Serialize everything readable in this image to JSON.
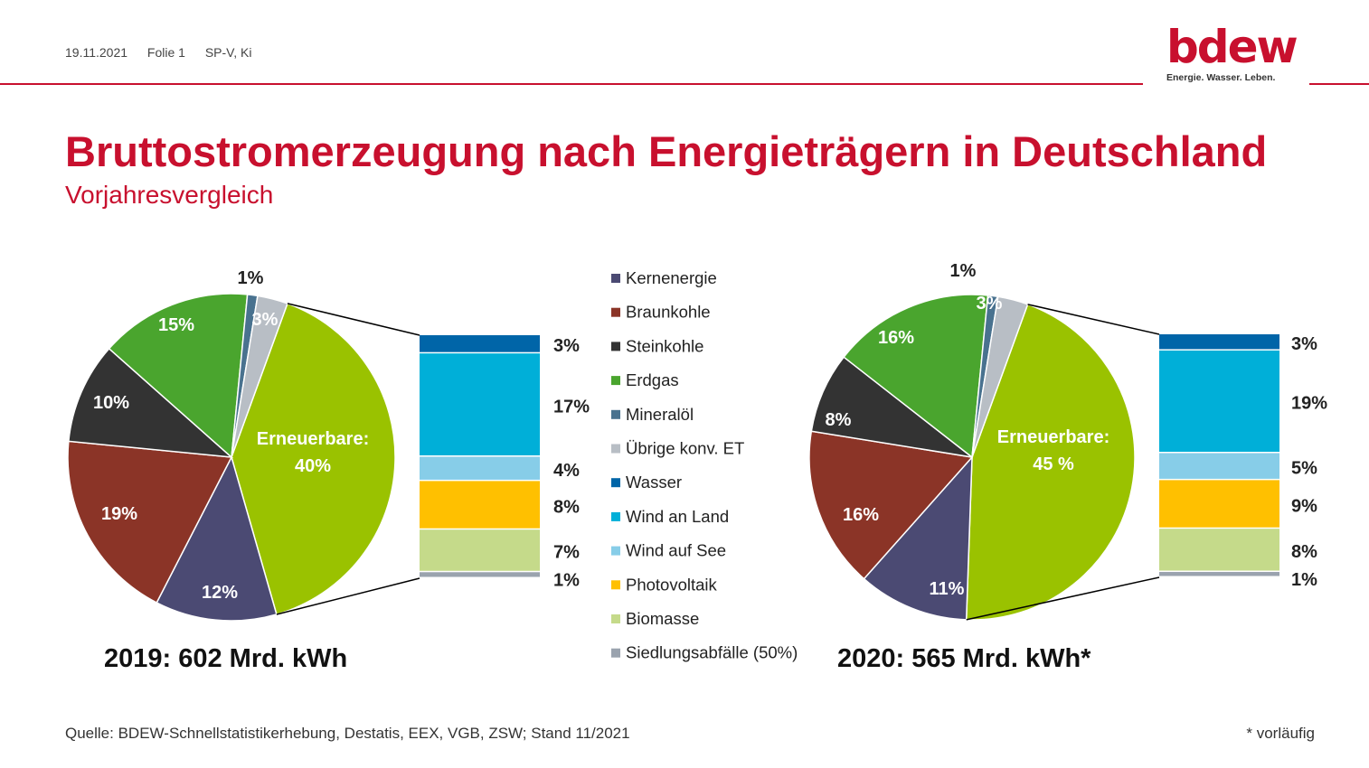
{
  "header": {
    "date": "19.11.2021",
    "slide": "Folie 1",
    "author": "SP-V, Ki",
    "logo_text": "bdew",
    "logo_tagline": "Energie. Wasser. Leben."
  },
  "title": "Bruttostromerzeugung nach Energieträgern in Deutschland",
  "subtitle": "Vorjahresvergleich",
  "colors": {
    "accent": "#c8102e",
    "Kernenergie": "#4b4a73",
    "Braunkohle": "#8b3427",
    "Steinkohle": "#333333",
    "Erdgas": "#4aa52e",
    "Mineralöl": "#49728f",
    "Übrige konv. ET": "#b8bec5",
    "Erneuerbare": "#9ac200",
    "Wasser": "#0065a8",
    "Wind an Land": "#00afd8",
    "Wind auf See": "#87cde8",
    "Photovoltaik": "#ffc000",
    "Biomasse": "#c5da8a",
    "Siedlungsabfälle (50%)": "#9aa3ae"
  },
  "chart_data": [
    {
      "type": "pie",
      "caption": "2019:  602 Mrd. kWh",
      "slices": [
        {
          "name": "Erneuerbare",
          "value": 40,
          "label": "Erneuerbare:",
          "label2": "40%"
        },
        {
          "name": "Kernenergie",
          "value": 12,
          "label": "12%"
        },
        {
          "name": "Braunkohle",
          "value": 19,
          "label": "19%"
        },
        {
          "name": "Steinkohle",
          "value": 10,
          "label": "10%"
        },
        {
          "name": "Erdgas",
          "value": 15,
          "label": "15%"
        },
        {
          "name": "Mineralöl",
          "value": 1,
          "label": "1%"
        },
        {
          "name": "Übrige konv. ET",
          "value": 3,
          "label": "3%"
        }
      ],
      "breakdown": [
        {
          "name": "Wasser",
          "value": 3,
          "label": "3%"
        },
        {
          "name": "Wind an Land",
          "value": 17,
          "label": "17%"
        },
        {
          "name": "Wind auf See",
          "value": 4,
          "label": "4%"
        },
        {
          "name": "Photovoltaik",
          "value": 8,
          "label": "8%"
        },
        {
          "name": "Biomasse",
          "value": 7,
          "label": "7%"
        },
        {
          "name": "Siedlungsabfälle (50%)",
          "value": 1,
          "label": "1%"
        }
      ]
    },
    {
      "type": "pie",
      "caption": "2020:  565 Mrd. kWh*",
      "slices": [
        {
          "name": "Erneuerbare",
          "value": 45,
          "label": "Erneuerbare:",
          "label2": "45 %"
        },
        {
          "name": "Kernenergie",
          "value": 11,
          "label": "11%"
        },
        {
          "name": "Braunkohle",
          "value": 16,
          "label": "16%"
        },
        {
          "name": "Steinkohle",
          "value": 8,
          "label": "8%"
        },
        {
          "name": "Erdgas",
          "value": 16,
          "label": "16%"
        },
        {
          "name": "Mineralöl",
          "value": 1,
          "label": "1%"
        },
        {
          "name": "Übrige konv. ET",
          "value": 3,
          "label": "3%"
        }
      ],
      "breakdown": [
        {
          "name": "Wasser",
          "value": 3,
          "label": "3%"
        },
        {
          "name": "Wind an Land",
          "value": 19,
          "label": "19%"
        },
        {
          "name": "Wind auf See",
          "value": 5,
          "label": "5%"
        },
        {
          "name": "Photovoltaik",
          "value": 9,
          "label": "9%"
        },
        {
          "name": "Biomasse",
          "value": 8,
          "label": "8%"
        },
        {
          "name": "Siedlungsabfälle (50%)",
          "value": 1,
          "label": "1%"
        }
      ]
    }
  ],
  "legend": [
    "Kernenergie",
    "Braunkohle",
    "Steinkohle",
    "Erdgas",
    "Mineralöl",
    "Übrige konv. ET",
    "Wasser",
    "Wind an Land",
    "Wind auf See",
    "Photovoltaik",
    "Biomasse",
    "Siedlungsabfälle (50%)"
  ],
  "footer": {
    "source": "Quelle: BDEW-Schnellstatistikerhebung, Destatis, EEX, VGB, ZSW; Stand 11/2021",
    "note": "* vorläufig"
  }
}
